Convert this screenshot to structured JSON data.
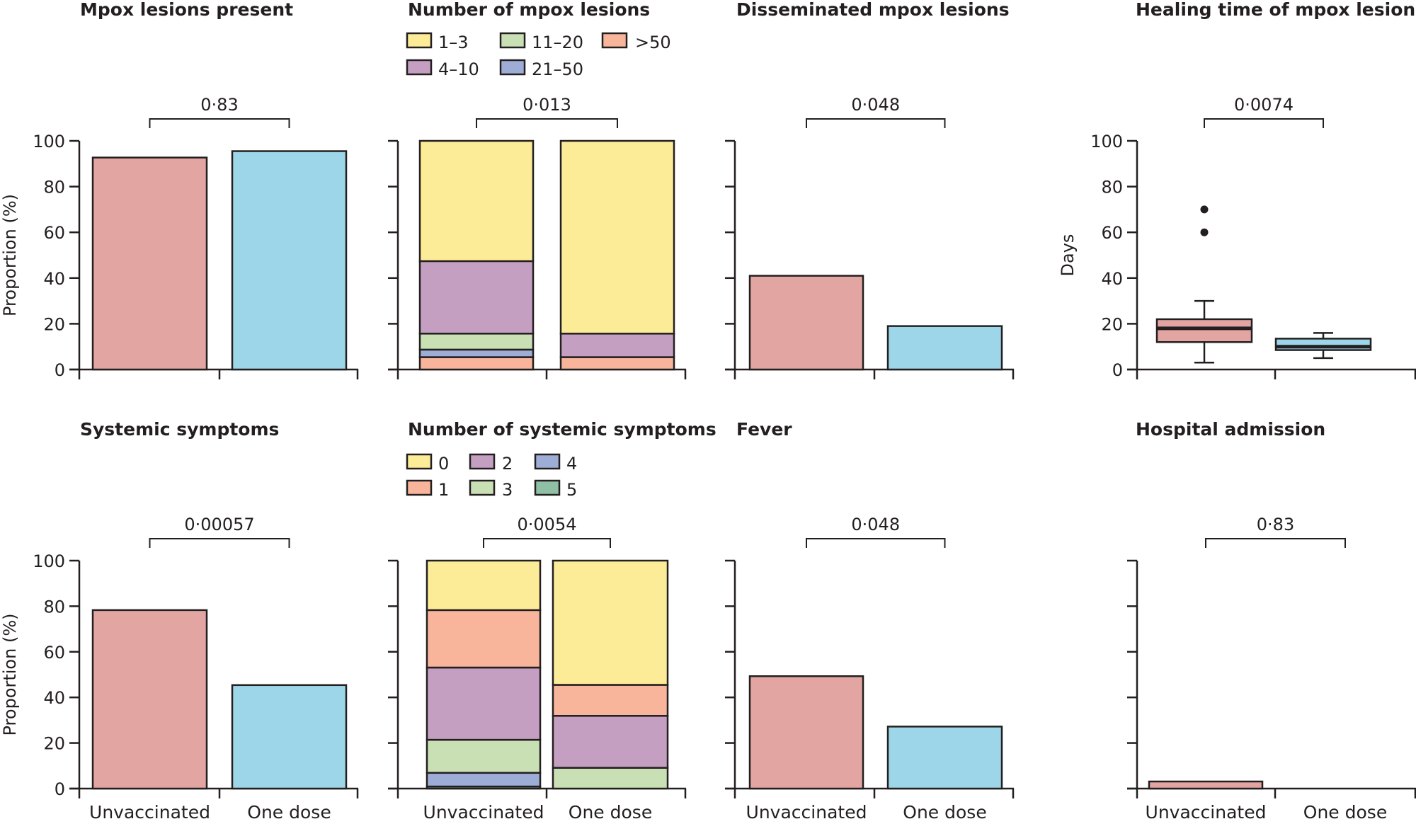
{
  "figure": {
    "group_labels": [
      "Unvaccinated",
      "One dose"
    ],
    "colors": {
      "unvaccinated": "#E2A5A2",
      "one_dose": "#9DD6E8",
      "outline": "#231F20"
    }
  },
  "chart_data": [
    {
      "id": "lesions-present",
      "type": "bar",
      "title": "Mpox lesions present",
      "ylabel": "Proportion (%)",
      "ylim": [
        0,
        100
      ],
      "yticks": [
        0,
        20,
        40,
        60,
        80,
        100
      ],
      "show_tick_labels": true,
      "categories": [
        "Unvaccinated",
        "One dose"
      ],
      "values": [
        92.7,
        95.5
      ],
      "p_value": "0·83",
      "show_x_labels": false
    },
    {
      "id": "number-of-lesions",
      "type": "bar",
      "stacked": true,
      "title": "Number of mpox lesions",
      "ylabel": "",
      "ylim": [
        0,
        100
      ],
      "yticks": [
        0,
        20,
        40,
        60,
        80,
        100
      ],
      "show_tick_labels": false,
      "categories": [
        "Unvaccinated",
        "One dose"
      ],
      "legend": {
        "placement": "top",
        "order": [
          "1–3",
          "11–20",
          ">50",
          "4–10",
          "21–50"
        ]
      },
      "series": [
        {
          "name": ">50",
          "color": "#F8B59B",
          "values": [
            5.4,
            5.4
          ]
        },
        {
          "name": "21–50",
          "color": "#9DADD6",
          "values": [
            3.3,
            0
          ]
        },
        {
          "name": "11–20",
          "color": "#C9E0B5",
          "values": [
            7.0,
            0
          ]
        },
        {
          "name": "4–10",
          "color": "#C59FC2",
          "values": [
            31.7,
            10.3
          ]
        },
        {
          "name": "1–3",
          "color": "#FDEC97",
          "values": [
            52.6,
            84.3
          ]
        }
      ],
      "p_value": "0·013",
      "show_x_labels": false
    },
    {
      "id": "disseminated-lesions",
      "type": "bar",
      "title": "Disseminated mpox lesions",
      "ylabel": "",
      "ylim": [
        0,
        100
      ],
      "yticks": [
        0,
        20,
        40,
        60,
        80,
        100
      ],
      "show_tick_labels": false,
      "categories": [
        "Unvaccinated",
        "One dose"
      ],
      "values": [
        41.0,
        19.0
      ],
      "p_value": "0·048",
      "show_x_labels": false
    },
    {
      "id": "healing-time",
      "type": "box",
      "title": "Healing time of mpox lesions",
      "ylabel": "Days",
      "ylim": [
        0,
        100
      ],
      "yticks": [
        0,
        20,
        40,
        60,
        80,
        100
      ],
      "show_tick_labels": true,
      "categories": [
        "Unvaccinated",
        "One dose"
      ],
      "boxes": [
        {
          "whisker_low": 3,
          "q1": 12,
          "median": 18,
          "q3": 22,
          "whisker_high": 30,
          "outliers": [
            60,
            70
          ]
        },
        {
          "whisker_low": 5,
          "q1": 8.5,
          "median": 10,
          "q3": 13.5,
          "whisker_high": 16,
          "outliers": []
        }
      ],
      "p_value": "0·0074",
      "show_x_labels": false
    },
    {
      "id": "systemic-symptoms",
      "type": "bar",
      "title": "Systemic symptoms",
      "ylabel": "Proportion (%)",
      "ylim": [
        0,
        100
      ],
      "yticks": [
        0,
        20,
        40,
        60,
        80,
        100
      ],
      "show_tick_labels": true,
      "categories": [
        "Unvaccinated",
        "One dose"
      ],
      "values": [
        78.3,
        45.4
      ],
      "p_value": "0·00057",
      "show_x_labels": true
    },
    {
      "id": "number-of-systemic-symptoms",
      "type": "bar",
      "stacked": true,
      "title": "Number of systemic symptoms",
      "ylabel": "",
      "ylim": [
        0,
        100
      ],
      "yticks": [
        0,
        20,
        40,
        60,
        80,
        100
      ],
      "show_tick_labels": false,
      "categories": [
        "Unvaccinated",
        "One dose"
      ],
      "legend": {
        "placement": "top",
        "order": [
          "0",
          "2",
          "4",
          "1",
          "3",
          "5"
        ]
      },
      "series": [
        {
          "name": "5",
          "color": "#8FBFA4",
          "values": [
            0.9,
            0
          ]
        },
        {
          "name": "4",
          "color": "#9DADD6",
          "values": [
            6.0,
            0
          ]
        },
        {
          "name": "3",
          "color": "#C9E0B5",
          "values": [
            14.5,
            9.1
          ]
        },
        {
          "name": "2",
          "color": "#C59FC2",
          "values": [
            31.7,
            22.8
          ]
        },
        {
          "name": "1",
          "color": "#F8B59B",
          "values": [
            25.2,
            13.6
          ]
        },
        {
          "name": "0",
          "color": "#FDEC97",
          "values": [
            21.7,
            54.5
          ]
        }
      ],
      "p_value": "0·0054",
      "show_x_labels": true
    },
    {
      "id": "fever",
      "type": "bar",
      "title": "Fever",
      "ylabel": "",
      "ylim": [
        0,
        100
      ],
      "yticks": [
        0,
        20,
        40,
        60,
        80,
        100
      ],
      "show_tick_labels": false,
      "categories": [
        "Unvaccinated",
        "One dose"
      ],
      "values": [
        49.3,
        27.2
      ],
      "p_value": "0·048",
      "show_x_labels": true
    },
    {
      "id": "hospital-admission",
      "type": "bar",
      "title": "Hospital admission",
      "ylabel": "",
      "ylim": [
        0,
        100
      ],
      "yticks": [
        0,
        20,
        40,
        60,
        80,
        100
      ],
      "show_tick_labels": false,
      "categories": [
        "Unvaccinated",
        "One dose"
      ],
      "values": [
        3.1,
        0
      ],
      "p_value": "0·83",
      "show_x_labels": true
    }
  ]
}
